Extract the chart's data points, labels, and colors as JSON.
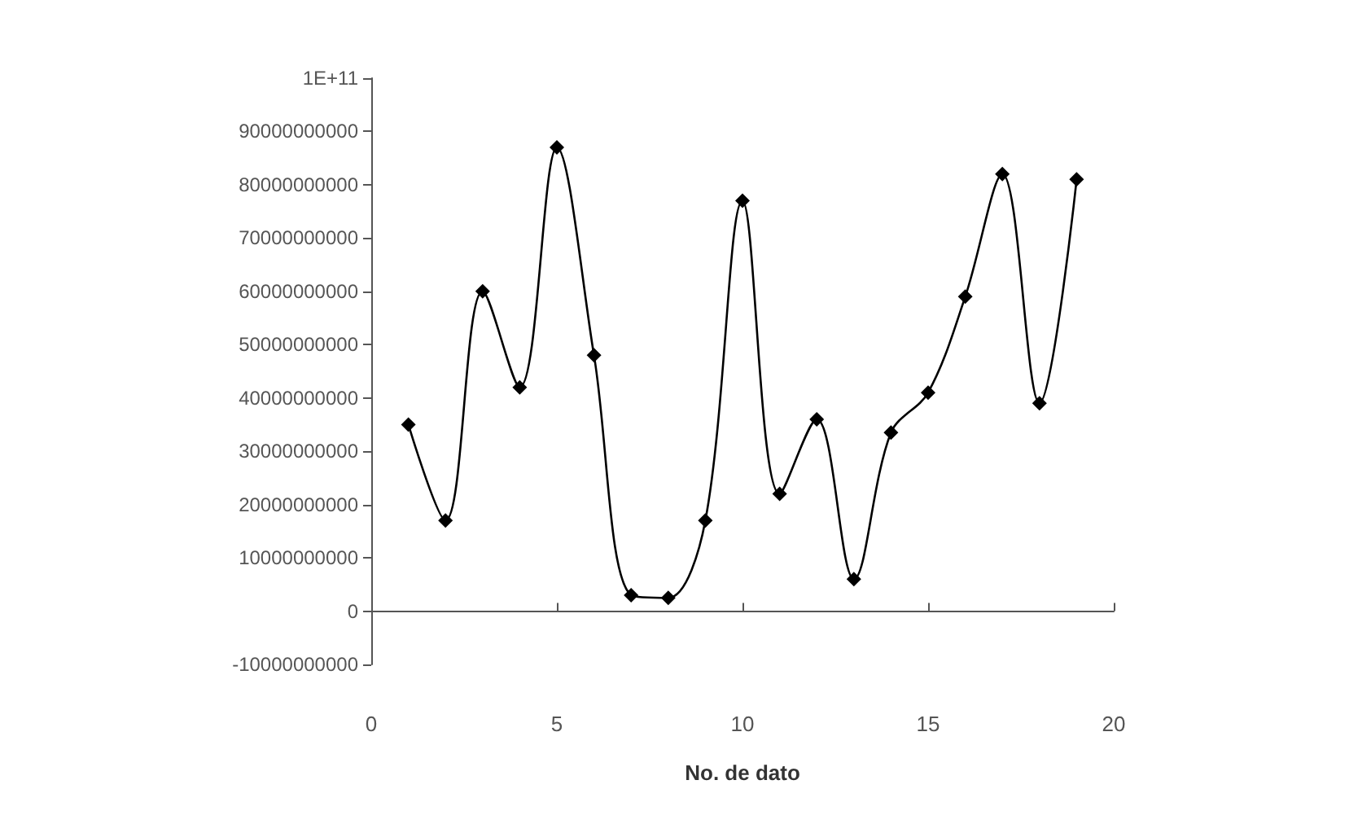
{
  "chart_data": {
    "type": "line",
    "xlabel": "No. de dato",
    "series": [
      {
        "color": "#000000",
        "x": [
          1,
          2,
          3,
          4,
          5,
          6,
          7,
          8,
          9,
          10,
          11,
          12,
          13,
          14,
          15,
          16,
          17,
          18,
          19
        ],
        "values": [
          35000000000,
          17000000000,
          60000000000,
          42000000000,
          87000000000,
          48000000000,
          3000000000,
          2500000000,
          17000000000,
          77000000000,
          22000000000,
          36000000000,
          6000000000,
          33500000000,
          41000000000,
          59000000000,
          82000000000,
          39000000000,
          81000000000
        ]
      }
    ],
    "xlim": [
      0,
      20
    ],
    "xticks": [
      0,
      5,
      10,
      15,
      20
    ],
    "ylim": [
      -10000000000,
      100000000000
    ],
    "yticks": [
      -10000000000,
      0,
      10000000000,
      20000000000,
      30000000000,
      40000000000,
      50000000000,
      60000000000,
      70000000000,
      80000000000,
      90000000000,
      {
        "value": 100000000000,
        "label": "1E+11"
      }
    ],
    "marker": "diamond",
    "line_style": "solid"
  }
}
